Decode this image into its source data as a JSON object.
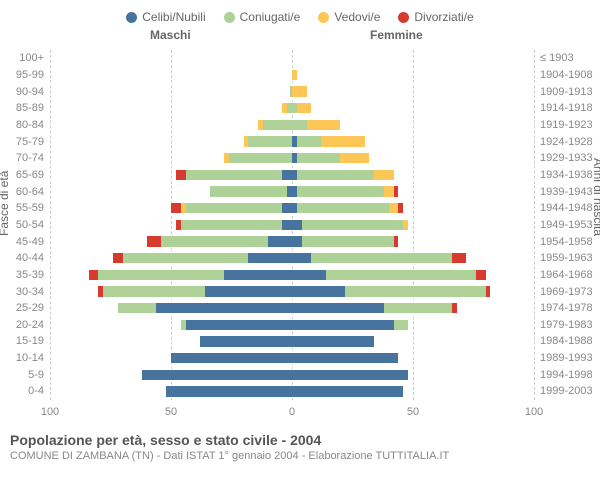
{
  "legend": [
    {
      "label": "Celibi/Nubili",
      "color": "#46749e"
    },
    {
      "label": "Coniugati/e",
      "color": "#add197"
    },
    {
      "label": "Vedovi/e",
      "color": "#fcc757"
    },
    {
      "label": "Divorziati/e",
      "color": "#d73a2e"
    }
  ],
  "headers": {
    "left": "Maschi",
    "right": "Femmine"
  },
  "axis_labels": {
    "left": "Fasce di età",
    "right": "Anni di nascita"
  },
  "x_ticks": [
    100,
    50,
    0,
    50,
    100
  ],
  "x_max": 100,
  "title": "Popolazione per età, sesso e stato civile - 2004",
  "subtitle": "COMUNE DI ZAMBANA (TN) - Dati ISTAT 1° gennaio 2004 - Elaborazione TUTTITALIA.IT",
  "colors": {
    "single": "#46749e",
    "married": "#add197",
    "widowed": "#fcc757",
    "divorced": "#d73a2e",
    "grid": "#cccccc",
    "text": "#888888",
    "bg": "#ffffff"
  },
  "rows": [
    {
      "age": "100+",
      "birth": "≤ 1903",
      "m": [
        0,
        0,
        0,
        0
      ],
      "f": [
        0,
        0,
        0,
        0
      ]
    },
    {
      "age": "95-99",
      "birth": "1904-1908",
      "m": [
        0,
        0,
        0,
        0
      ],
      "f": [
        0,
        0,
        2,
        0
      ]
    },
    {
      "age": "90-94",
      "birth": "1909-1913",
      "m": [
        0,
        1,
        0,
        0
      ],
      "f": [
        0,
        0,
        6,
        0
      ]
    },
    {
      "age": "85-89",
      "birth": "1914-1918",
      "m": [
        0,
        2,
        2,
        0
      ],
      "f": [
        0,
        2,
        6,
        0
      ]
    },
    {
      "age": "80-84",
      "birth": "1919-1923",
      "m": [
        0,
        12,
        2,
        0
      ],
      "f": [
        0,
        6,
        14,
        0
      ]
    },
    {
      "age": "75-79",
      "birth": "1924-1928",
      "m": [
        0,
        18,
        2,
        0
      ],
      "f": [
        2,
        10,
        18,
        0
      ]
    },
    {
      "age": "70-74",
      "birth": "1929-1933",
      "m": [
        0,
        26,
        2,
        0
      ],
      "f": [
        2,
        18,
        12,
        0
      ]
    },
    {
      "age": "65-69",
      "birth": "1934-1938",
      "m": [
        4,
        40,
        0,
        4
      ],
      "f": [
        2,
        32,
        8,
        0
      ]
    },
    {
      "age": "60-64",
      "birth": "1939-1943",
      "m": [
        2,
        32,
        0,
        0
      ],
      "f": [
        2,
        36,
        4,
        2
      ]
    },
    {
      "age": "55-59",
      "birth": "1944-1948",
      "m": [
        4,
        40,
        2,
        4
      ],
      "f": [
        2,
        38,
        4,
        2
      ]
    },
    {
      "age": "50-54",
      "birth": "1949-1953",
      "m": [
        4,
        42,
        0,
        2
      ],
      "f": [
        4,
        42,
        2,
        0
      ]
    },
    {
      "age": "45-49",
      "birth": "1954-1958",
      "m": [
        10,
        44,
        0,
        6
      ],
      "f": [
        4,
        38,
        0,
        2
      ]
    },
    {
      "age": "40-44",
      "birth": "1959-1963",
      "m": [
        18,
        52,
        0,
        4
      ],
      "f": [
        8,
        58,
        0,
        6
      ]
    },
    {
      "age": "35-39",
      "birth": "1964-1968",
      "m": [
        28,
        52,
        0,
        4
      ],
      "f": [
        14,
        62,
        0,
        4
      ]
    },
    {
      "age": "30-34",
      "birth": "1969-1973",
      "m": [
        36,
        42,
        0,
        2
      ],
      "f": [
        22,
        58,
        0,
        2
      ]
    },
    {
      "age": "25-29",
      "birth": "1974-1978",
      "m": [
        56,
        16,
        0,
        0
      ],
      "f": [
        38,
        28,
        0,
        2
      ]
    },
    {
      "age": "20-24",
      "birth": "1979-1983",
      "m": [
        44,
        2,
        0,
        0
      ],
      "f": [
        42,
        6,
        0,
        0
      ]
    },
    {
      "age": "15-19",
      "birth": "1984-1988",
      "m": [
        38,
        0,
        0,
        0
      ],
      "f": [
        34,
        0,
        0,
        0
      ]
    },
    {
      "age": "10-14",
      "birth": "1989-1993",
      "m": [
        50,
        0,
        0,
        0
      ],
      "f": [
        44,
        0,
        0,
        0
      ]
    },
    {
      "age": "5-9",
      "birth": "1994-1998",
      "m": [
        62,
        0,
        0,
        0
      ],
      "f": [
        48,
        0,
        0,
        0
      ]
    },
    {
      "age": "0-4",
      "birth": "1999-2003",
      "m": [
        52,
        0,
        0,
        0
      ],
      "f": [
        46,
        0,
        0,
        0
      ]
    }
  ]
}
